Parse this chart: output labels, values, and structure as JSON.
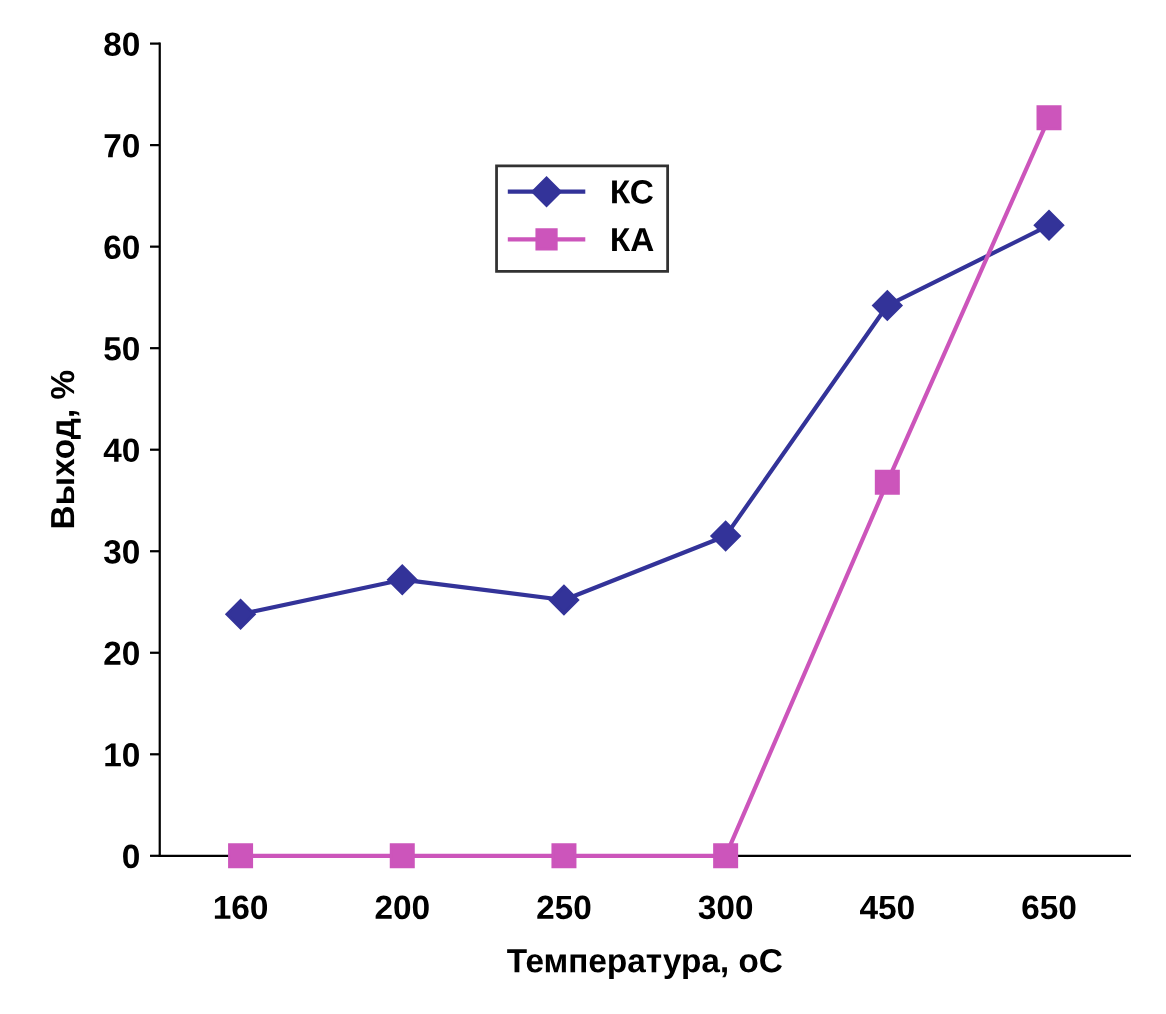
{
  "chart_data": {
    "type": "line",
    "xlabel": "Температура, оС",
    "ylabel": "Выход, %",
    "categories": [
      "160",
      "200",
      "250",
      "300",
      "450",
      "650"
    ],
    "series": [
      {
        "name": "КС",
        "color": "#333399",
        "marker": "diamond",
        "values": [
          23.8,
          27.2,
          25.2,
          31.5,
          54.2,
          62.1
        ]
      },
      {
        "name": "КА",
        "color": "#cc55bb",
        "marker": "square",
        "values": [
          0,
          0,
          0,
          0,
          36.8,
          72.7
        ]
      }
    ],
    "ylim": [
      0,
      80
    ],
    "yticks": [
      0,
      10,
      20,
      30,
      40,
      50,
      60,
      70,
      80
    ],
    "grid": false,
    "legend": "top left"
  }
}
